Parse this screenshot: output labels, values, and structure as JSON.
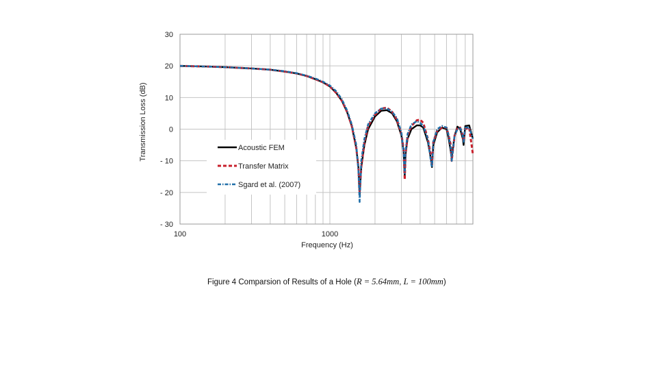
{
  "chart_data": {
    "type": "line",
    "title": "",
    "xlabel": "Frequency (Hz)",
    "ylabel": "Transmission Loss (dB)",
    "xscale": "log",
    "xlim": [
      100,
      9000
    ],
    "ylim": [
      -30,
      30
    ],
    "y_ticks": [
      30,
      20,
      10,
      0,
      -10,
      -20,
      -30
    ],
    "y_tick_labels": [
      "30",
      "20",
      "10",
      "0",
      "- 10",
      "- 20",
      "- 30"
    ],
    "x_ticks": [
      100,
      1000
    ],
    "x_tick_labels": [
      "100",
      "1000"
    ],
    "grid": true,
    "legend_position": "center-left",
    "series": [
      {
        "name": "Acoustic FEM",
        "color": "#000000",
        "style": "solid",
        "x": [
          100,
          150,
          200,
          300,
          400,
          500,
          600,
          700,
          800,
          900,
          1000,
          1100,
          1200,
          1300,
          1400,
          1500,
          1550,
          1580,
          1620,
          1700,
          1800,
          2000,
          2200,
          2400,
          2600,
          2800,
          3000,
          3100,
          3160,
          3200,
          3300,
          3500,
          3800,
          4000,
          4200,
          4500,
          4750,
          4800,
          4900,
          5200,
          5600,
          6000,
          6200,
          6400,
          6500,
          6800,
          7100,
          7400,
          7700,
          7800,
          8000,
          8500,
          9000
        ],
        "y": [
          20,
          19.8,
          19.6,
          19.2,
          18.8,
          18.2,
          17.6,
          16.8,
          15.8,
          14.8,
          13.5,
          11.5,
          9,
          5.5,
          1,
          -6,
          -12,
          -21,
          -12,
          -5,
          0,
          4,
          5.8,
          6,
          5,
          2.5,
          -2,
          -7,
          -15,
          -8,
          -3,
          0,
          1.2,
          1.2,
          0.5,
          -4,
          -10,
          -12,
          -5,
          -1,
          0.5,
          0,
          -3,
          -7,
          -9,
          -2,
          0.8,
          0,
          -3,
          -5,
          1,
          1.2,
          -3
        ]
      },
      {
        "name": "Transfer Matrix",
        "color": "#c8202c",
        "style": "dashed",
        "x": [
          100,
          150,
          200,
          300,
          400,
          500,
          600,
          700,
          800,
          900,
          1000,
          1100,
          1200,
          1300,
          1400,
          1500,
          1550,
          1580,
          1620,
          1700,
          1800,
          2000,
          2200,
          2400,
          2600,
          2800,
          3000,
          3100,
          3160,
          3200,
          3300,
          3500,
          3800,
          4000,
          4200,
          4500,
          4750,
          4800,
          4900,
          5200,
          5600,
          6000,
          6200,
          6400,
          6500,
          6800,
          7100,
          7400,
          7700,
          7800,
          8000,
          8500,
          9000
        ],
        "y": [
          20,
          19.8,
          19.6,
          19.2,
          18.8,
          18.2,
          17.6,
          16.8,
          15.8,
          14.8,
          13.5,
          11.5,
          9,
          5.5,
          1,
          -6,
          -12,
          -20,
          -12,
          -4,
          1,
          4.5,
          6.5,
          6.8,
          5.5,
          3,
          -1.5,
          -6,
          -16,
          -8,
          -2,
          1,
          2.8,
          3,
          2,
          -3,
          -9,
          -11,
          -4,
          -0.5,
          0.5,
          0.5,
          -2,
          -5,
          -10,
          -2,
          0.2,
          0.5,
          -2,
          -4,
          0,
          0.5,
          -8
        ]
      },
      {
        "name": "Sgard et al. (2007)",
        "color": "#1f6ea8",
        "style": "dashdot",
        "x": [
          100,
          150,
          200,
          300,
          400,
          500,
          600,
          700,
          800,
          900,
          1000,
          1100,
          1200,
          1300,
          1400,
          1500,
          1550,
          1580,
          1620,
          1700,
          1800,
          2000,
          2200,
          2400,
          2600,
          2800,
          3000,
          3100,
          3160,
          3200,
          3300,
          3500,
          3800,
          4000,
          4200,
          4500,
          4750,
          4800,
          4900,
          5200,
          5600,
          6000,
          6200,
          6400,
          6500,
          6800,
          7100,
          7400,
          7700,
          7800,
          8000,
          8500,
          9000
        ],
        "y": [
          20,
          19.8,
          19.6,
          19.2,
          18.8,
          18.3,
          17.7,
          16.9,
          16,
          15,
          13.8,
          12,
          9.5,
          6,
          1.5,
          -5,
          -13,
          -23,
          -10,
          -3,
          1.5,
          5,
          6.5,
          6.5,
          5.5,
          3.5,
          -1,
          -7,
          -14,
          -7,
          -1.5,
          1.5,
          2.5,
          2,
          1,
          -3,
          -11,
          -12,
          -4,
          0,
          1,
          0.5,
          -2,
          -6,
          -10,
          -2,
          0,
          0.5,
          -2,
          -4,
          0.5,
          0.5,
          -3
        ]
      }
    ]
  },
  "caption": {
    "prefix": "Figure 4  Comparsion of Results of a Hole (",
    "r_math": "R = 5.64mm",
    "separator": ", ",
    "l_math": "L = 100mm",
    "suffix": ")"
  }
}
